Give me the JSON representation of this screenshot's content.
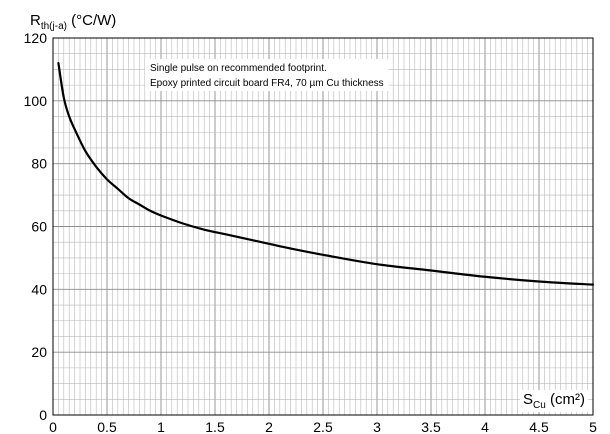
{
  "chart_data": {
    "type": "line",
    "ylabel": {
      "main": "R",
      "sub": "th(j-a)",
      "unit": " (°C/W)"
    },
    "xlabel": {
      "main": "S",
      "sub": "Cu",
      "unit": " (cm²)"
    },
    "annotation": [
      "Single pulse on recommended footprint.",
      "Epoxy printed circuit board FR4, 70 µm Cu thickness"
    ],
    "xlim": [
      0,
      5
    ],
    "ylim": [
      0,
      120
    ],
    "x_ticks": [
      "0",
      "0.5",
      "1",
      "1.5",
      "2",
      "2.5",
      "3",
      "3.5",
      "4",
      "4.5",
      "5"
    ],
    "y_ticks": [
      "0",
      "20",
      "40",
      "60",
      "80",
      "100",
      "120"
    ],
    "grid": true,
    "series": [
      {
        "x": [
          0.05,
          0.1,
          0.15,
          0.2,
          0.3,
          0.4,
          0.5,
          0.6,
          0.7,
          0.8,
          0.9,
          1.0,
          1.2,
          1.4,
          1.6,
          1.8,
          2.0,
          2.2,
          2.5,
          3.0,
          3.5,
          4.0,
          4.5,
          5.0
        ],
        "y": [
          112,
          101,
          95,
          91,
          84,
          79,
          75,
          72,
          69,
          67,
          65,
          63.5,
          61,
          59,
          57.5,
          56,
          54.5,
          53,
          51,
          48,
          46,
          44,
          42.5,
          41.5
        ]
      }
    ]
  }
}
